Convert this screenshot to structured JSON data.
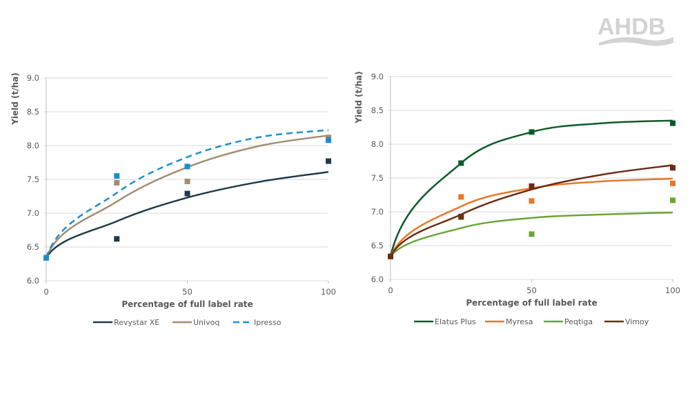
{
  "logo": {
    "text": "AHDB",
    "color": "#d3d3d3"
  },
  "chart_data": [
    {
      "type": "scatter",
      "xlabel": "Percentage of full label rate",
      "ylabel": "Yield (t/ha)",
      "xlim": [
        0,
        100
      ],
      "ylim": [
        6.0,
        9.0
      ],
      "xticks": [
        "0",
        "50",
        "100"
      ],
      "yticks": [
        "6.0",
        "6.5",
        "7.0",
        "7.5",
        "8.0",
        "8.5",
        "9.0"
      ],
      "grid": true,
      "legend_position": "bottom",
      "series": [
        {
          "name": "Revystar XE",
          "color": "#1f3a4a",
          "dashed": false,
          "points": {
            "x": [
              0,
              25,
              50,
              100
            ],
            "y": [
              6.34,
              6.62,
              7.29,
              7.77
            ]
          },
          "curve": {
            "x": [
              0,
              25,
              50,
              75,
              100
            ],
            "y": [
              6.34,
              6.88,
              7.23,
              7.46,
              7.61
            ]
          }
        },
        {
          "name": "Univoq",
          "color": "#a38d72",
          "dashed": false,
          "points": {
            "x": [
              0,
              25,
              50,
              100
            ],
            "y": [
              6.34,
              7.45,
              7.47,
              8.12
            ]
          },
          "curve": {
            "x": [
              0,
              25,
              50,
              75,
              100
            ],
            "y": [
              6.34,
              7.17,
              7.68,
              7.99,
              8.15
            ]
          }
        },
        {
          "name": "Ipresso",
          "color": "#1a8fd0",
          "dashed": true,
          "points": {
            "x": [
              0,
              25,
              50,
              100
            ],
            "y": [
              6.34,
              7.55,
              7.69,
              8.08
            ]
          },
          "curve": {
            "x": [
              0,
              25,
              50,
              75,
              100
            ],
            "y": [
              6.34,
              7.3,
              7.83,
              8.12,
              8.23
            ]
          }
        }
      ]
    },
    {
      "type": "scatter",
      "xlabel": "Percentage of full label rate",
      "ylabel": "Yield (t/ha)",
      "xlim": [
        0,
        100
      ],
      "ylim": [
        6.0,
        9.0
      ],
      "xticks": [
        "0",
        "50",
        "100"
      ],
      "yticks": [
        "6.0",
        "6.5",
        "7.0",
        "7.5",
        "8.0",
        "8.5",
        "9.0"
      ],
      "grid": true,
      "legend_position": "bottom",
      "series": [
        {
          "name": "Elatus Plus",
          "color": "#0d5a2b",
          "dashed": false,
          "points": {
            "x": [
              0,
              25,
              50,
              100
            ],
            "y": [
              6.34,
              7.72,
              8.18,
              8.31
            ]
          },
          "curve": {
            "x": [
              0,
              25,
              50,
              75,
              100
            ],
            "y": [
              6.34,
              7.72,
              8.18,
              8.31,
              8.35
            ]
          }
        },
        {
          "name": "Myresa",
          "color": "#e8772a",
          "dashed": false,
          "points": {
            "x": [
              0,
              25,
              50,
              100
            ],
            "y": [
              6.34,
              7.22,
              7.16,
              7.42
            ]
          },
          "curve": {
            "x": [
              0,
              25,
              50,
              75,
              100
            ],
            "y": [
              6.34,
              7.08,
              7.35,
              7.45,
              7.49
            ]
          }
        },
        {
          "name": "Peqtiga",
          "color": "#6aa535",
          "dashed": false,
          "points": {
            "x": [
              0,
              25,
              50,
              100
            ],
            "y": [
              6.34,
              6.92,
              6.67,
              7.17
            ]
          },
          "curve": {
            "x": [
              0,
              25,
              50,
              75,
              100
            ],
            "y": [
              6.34,
              6.76,
              6.91,
              6.96,
              6.99
            ]
          }
        },
        {
          "name": "Vimoy",
          "color": "#6e2c14",
          "dashed": false,
          "points": {
            "x": [
              0,
              25,
              50,
              100
            ],
            "y": [
              6.34,
              6.93,
              7.38,
              7.65
            ]
          },
          "curve": {
            "x": [
              0,
              25,
              50,
              75,
              100
            ],
            "y": [
              6.34,
              6.96,
              7.33,
              7.55,
              7.69
            ]
          }
        }
      ]
    }
  ]
}
